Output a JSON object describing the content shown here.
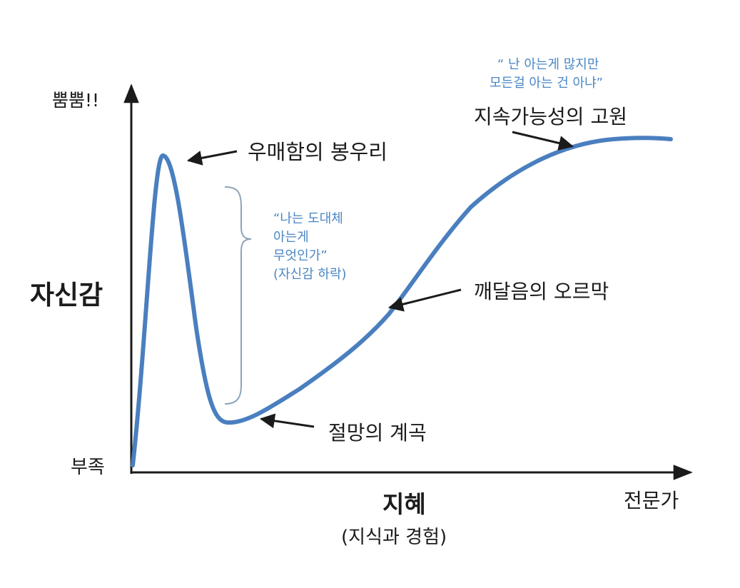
{
  "diagram": {
    "y_axis": {
      "title": "자신감",
      "top_label": "뿜뿜!!",
      "bottom_label": "부족"
    },
    "x_axis": {
      "title": "지혜",
      "subtitle": "(지식과 경험)",
      "right_label": "전문가"
    },
    "annotations": {
      "peak": "우매함의 봉우리",
      "valley": "절망의 계곡",
      "slope": "깨달음의 오르막",
      "plateau": "지속가능성의 고원"
    },
    "quotes": {
      "drop_line1": "“나는 도대체",
      "drop_line2": "아는게",
      "drop_line3": "무엇인가”",
      "drop_line4": "(자신감 하락)",
      "expert_line1": "“ 난 아는게 많지만",
      "expert_line2": "모든걸 아는 건 아냐”"
    },
    "colors": {
      "curve": "#4a7fbf",
      "quote_text": "#4a86c4",
      "brace": "#8ea4ba",
      "axis": "#1b1b1b"
    }
  }
}
